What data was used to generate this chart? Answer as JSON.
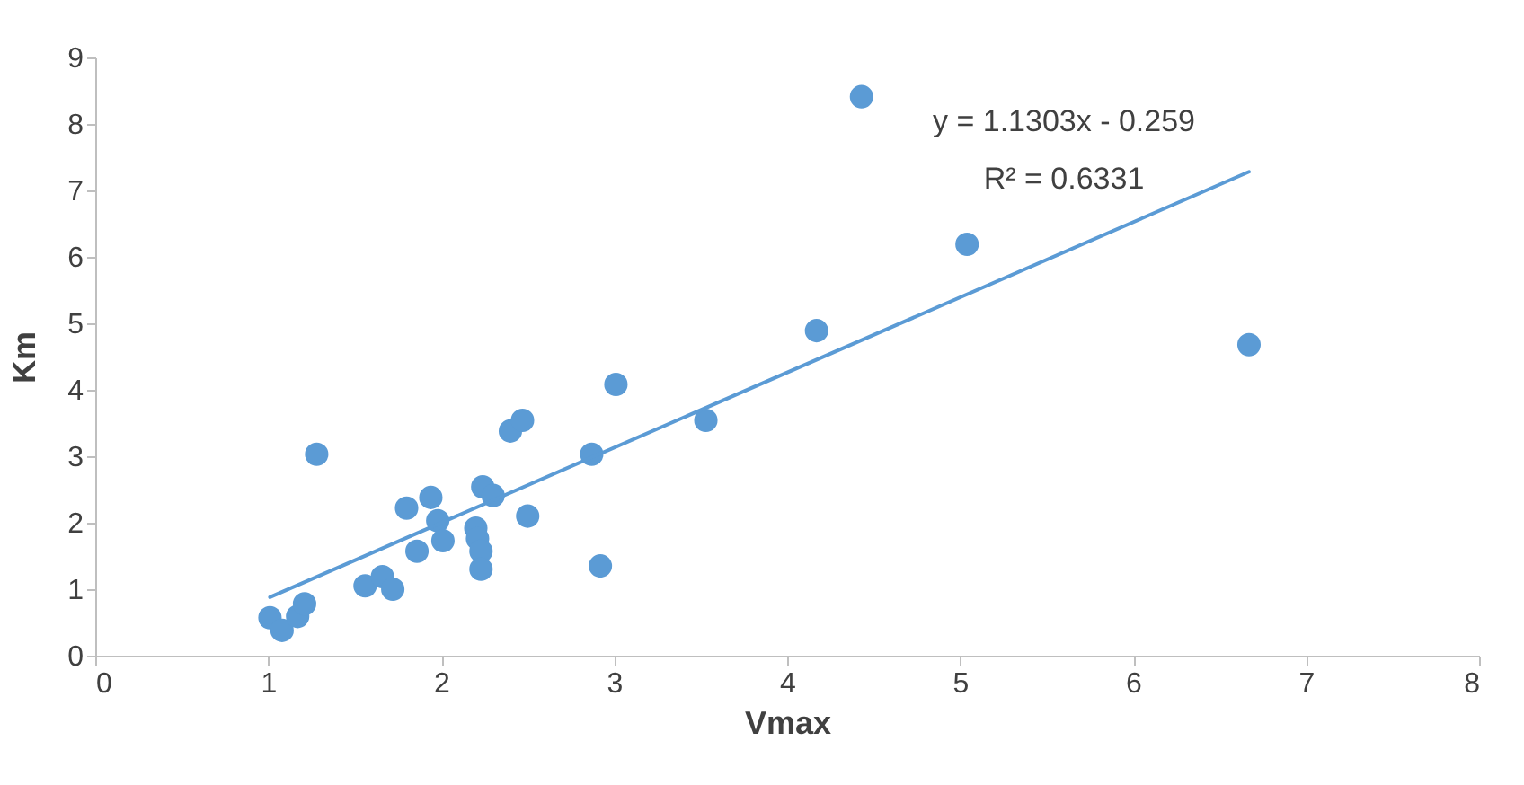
{
  "chart_data": {
    "type": "scatter",
    "xlabel": "Vmax",
    "ylabel": "Km",
    "xlim": [
      0,
      8
    ],
    "ylim": [
      0,
      9
    ],
    "xticks": [
      0,
      1,
      2,
      3,
      4,
      5,
      6,
      7,
      8
    ],
    "yticks": [
      0,
      1,
      2,
      3,
      4,
      5,
      6,
      7,
      8,
      9
    ],
    "grid": false,
    "annotations": [
      "y = 1.1303x - 0.259",
      "R² = 0.6331"
    ],
    "series": [
      {
        "marker": "circle",
        "color": "#5b9bd5",
        "x": [
          1.01,
          1.08,
          1.17,
          1.21,
          1.28,
          1.56,
          1.66,
          1.72,
          1.8,
          1.86,
          1.94,
          1.98,
          2.01,
          2.2,
          2.21,
          2.23,
          2.23,
          2.24,
          2.3,
          2.4,
          2.47,
          2.5,
          2.87,
          2.92,
          3.01,
          3.53,
          4.17,
          4.43,
          5.04,
          6.67
        ],
        "values": [
          0.57,
          0.38,
          0.59,
          0.78,
          3.03,
          1.05,
          1.19,
          1.0,
          2.22,
          1.57,
          2.38,
          2.03,
          1.73,
          1.92,
          1.76,
          1.57,
          1.3,
          2.54,
          2.41,
          3.38,
          3.54,
          2.1,
          3.03,
          1.35,
          4.08,
          3.54,
          4.89,
          8.41,
          6.19,
          4.68
        ]
      },
      {
        "type": "line",
        "marker": "none",
        "color": "#5b9bd5",
        "x": [
          1.01,
          6.67
        ],
        "values": [
          0.88,
          7.28
        ]
      }
    ]
  }
}
